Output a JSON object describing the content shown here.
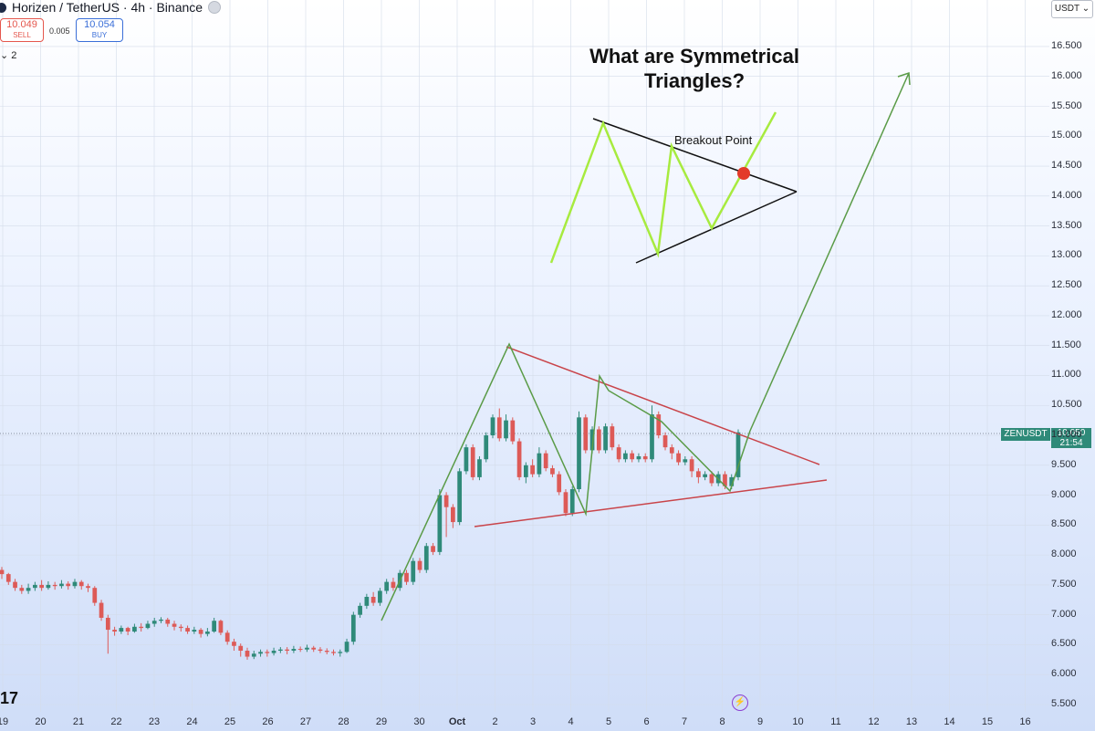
{
  "header": {
    "symbol": "Horizen / TetherUS · 4h · Binance"
  },
  "quote": {
    "sell_price": "10.049",
    "sell_label": "SELL",
    "spread": "0.005",
    "buy_price": "10.054",
    "buy_label": "BUY"
  },
  "indicators": {
    "label": "⌄ 2"
  },
  "currency": {
    "label": "USDT ⌄"
  },
  "ticker": {
    "name": "ZENUSDT",
    "price": "10.050",
    "countdown": "21:54"
  },
  "annotations": {
    "title_line1": "What are Symmetrical",
    "title_line2": "Triangles?",
    "breakout": "Breakout Point",
    "brand": "17"
  },
  "colors": {
    "up": "#2f8a79",
    "down": "#dd5a57",
    "trend_green": "#5a9b47",
    "trend_red": "#c9444a",
    "lime": "#a7eb3f",
    "dot": "#e33a2a"
  },
  "chart_data": {
    "type": "candlestick",
    "title": "What are Symmetrical Triangles?",
    "y_ticks": [
      "16.500",
      "16.000",
      "15.500",
      "15.000",
      "14.500",
      "14.000",
      "13.500",
      "13.000",
      "12.500",
      "12.000",
      "11.500",
      "11.000",
      "10.500",
      "10.000",
      "9.500",
      "9.000",
      "8.500",
      "8.000",
      "7.500",
      "7.000",
      "6.500",
      "6.000",
      "5.500"
    ],
    "x_ticks": [
      "19",
      "20",
      "21",
      "22",
      "23",
      "24",
      "25",
      "26",
      "27",
      "28",
      "29",
      "30",
      "Oct",
      "2",
      "3",
      "4",
      "5",
      "6",
      "7",
      "8",
      "9",
      "10",
      "11",
      "12",
      "13",
      "14",
      "15",
      "16"
    ],
    "ylim": [
      5.5,
      16.5
    ],
    "current_price": 10.05,
    "candles": [
      [
        7.75,
        7.68,
        7.8,
        7.6
      ],
      [
        7.68,
        7.55,
        7.7,
        7.5
      ],
      [
        7.55,
        7.45,
        7.6,
        7.4
      ],
      [
        7.45,
        7.4,
        7.5,
        7.35
      ],
      [
        7.4,
        7.45,
        7.52,
        7.35
      ],
      [
        7.45,
        7.5,
        7.55,
        7.4
      ],
      [
        7.5,
        7.45,
        7.58,
        7.4
      ],
      [
        7.45,
        7.5,
        7.56,
        7.42
      ],
      [
        7.5,
        7.48,
        7.55,
        7.42
      ],
      [
        7.48,
        7.52,
        7.58,
        7.44
      ],
      [
        7.52,
        7.48,
        7.56,
        7.42
      ],
      [
        7.48,
        7.55,
        7.6,
        7.44
      ],
      [
        7.55,
        7.48,
        7.58,
        7.42
      ],
      [
        7.48,
        7.45,
        7.52,
        7.38
      ],
      [
        7.45,
        7.2,
        7.48,
        7.15
      ],
      [
        7.2,
        6.95,
        7.25,
        6.9
      ],
      [
        6.95,
        6.75,
        7.0,
        6.35
      ],
      [
        6.75,
        6.72,
        6.8,
        6.65
      ],
      [
        6.72,
        6.78,
        6.82,
        6.68
      ],
      [
        6.78,
        6.72,
        6.8,
        6.66
      ],
      [
        6.72,
        6.8,
        6.85,
        6.7
      ],
      [
        6.8,
        6.78,
        6.86,
        6.72
      ],
      [
        6.78,
        6.85,
        6.9,
        6.76
      ],
      [
        6.85,
        6.9,
        6.95,
        6.8
      ],
      [
        6.9,
        6.92,
        6.96,
        6.86
      ],
      [
        6.92,
        6.85,
        6.95,
        6.8
      ],
      [
        6.85,
        6.8,
        6.9,
        6.74
      ],
      [
        6.8,
        6.78,
        6.84,
        6.72
      ],
      [
        6.78,
        6.72,
        6.82,
        6.68
      ],
      [
        6.72,
        6.75,
        6.8,
        6.68
      ],
      [
        6.75,
        6.68,
        6.78,
        6.62
      ],
      [
        6.68,
        6.72,
        6.78,
        6.64
      ],
      [
        6.72,
        6.9,
        6.95,
        6.7
      ],
      [
        6.9,
        6.7,
        6.92,
        6.66
      ],
      [
        6.7,
        6.55,
        6.74,
        6.5
      ],
      [
        6.55,
        6.48,
        6.6,
        6.4
      ],
      [
        6.48,
        6.4,
        6.52,
        6.3
      ],
      [
        6.4,
        6.3,
        6.45,
        6.25
      ],
      [
        6.3,
        6.35,
        6.4,
        6.26
      ],
      [
        6.35,
        6.38,
        6.42,
        6.3
      ],
      [
        6.38,
        6.36,
        6.42,
        6.3
      ],
      [
        6.36,
        6.4,
        6.45,
        6.32
      ],
      [
        6.4,
        6.42,
        6.46,
        6.36
      ],
      [
        6.42,
        6.4,
        6.46,
        6.34
      ],
      [
        6.4,
        6.43,
        6.48,
        6.36
      ],
      [
        6.43,
        6.42,
        6.47,
        6.38
      ],
      [
        6.42,
        6.45,
        6.5,
        6.38
      ],
      [
        6.45,
        6.42,
        6.48,
        6.38
      ],
      [
        6.42,
        6.4,
        6.46,
        6.36
      ],
      [
        6.4,
        6.38,
        6.44,
        6.34
      ],
      [
        6.38,
        6.36,
        6.42,
        6.32
      ],
      [
        6.36,
        6.38,
        6.42,
        6.3
      ],
      [
        6.38,
        6.55,
        6.6,
        6.36
      ],
      [
        6.55,
        7.0,
        7.05,
        6.5
      ],
      [
        7.0,
        7.15,
        7.2,
        6.95
      ],
      [
        7.15,
        7.3,
        7.35,
        7.1
      ],
      [
        7.3,
        7.2,
        7.38,
        7.15
      ],
      [
        7.2,
        7.4,
        7.45,
        7.15
      ],
      [
        7.4,
        7.55,
        7.6,
        7.35
      ],
      [
        7.55,
        7.45,
        7.62,
        7.4
      ],
      [
        7.45,
        7.7,
        7.75,
        7.4
      ],
      [
        7.7,
        7.55,
        7.75,
        7.5
      ],
      [
        7.55,
        7.9,
        7.95,
        7.5
      ],
      [
        7.9,
        7.75,
        7.95,
        7.7
      ],
      [
        7.75,
        8.15,
        8.2,
        7.7
      ],
      [
        8.15,
        8.05,
        8.2,
        8.0
      ],
      [
        8.05,
        9.0,
        9.1,
        8.0
      ],
      [
        9.0,
        8.8,
        9.05,
        8.3
      ],
      [
        8.8,
        8.55,
        8.85,
        8.45
      ],
      [
        8.55,
        9.4,
        9.45,
        8.5
      ],
      [
        9.4,
        9.8,
        9.85,
        9.35
      ],
      [
        9.8,
        9.3,
        9.85,
        9.25
      ],
      [
        9.3,
        9.6,
        9.65,
        9.25
      ],
      [
        9.6,
        10.0,
        10.05,
        9.55
      ],
      [
        10.0,
        10.3,
        10.35,
        9.95
      ],
      [
        10.3,
        9.95,
        10.45,
        9.9
      ],
      [
        9.95,
        10.25,
        10.35,
        9.9
      ],
      [
        10.25,
        9.9,
        10.3,
        9.85
      ],
      [
        9.9,
        9.3,
        9.95,
        9.25
      ],
      [
        9.3,
        9.5,
        9.55,
        9.2
      ],
      [
        9.5,
        9.35,
        9.6,
        9.3
      ],
      [
        9.35,
        9.7,
        9.8,
        9.3
      ],
      [
        9.7,
        9.45,
        9.75,
        9.4
      ],
      [
        9.45,
        9.35,
        9.5,
        9.3
      ],
      [
        9.35,
        9.05,
        9.4,
        9.0
      ],
      [
        9.05,
        8.7,
        9.1,
        8.65
      ],
      [
        8.7,
        9.1,
        9.15,
        8.65
      ],
      [
        9.1,
        10.3,
        10.4,
        9.05
      ],
      [
        10.3,
        9.75,
        10.35,
        9.7
      ],
      [
        9.75,
        10.1,
        10.15,
        9.7
      ],
      [
        10.1,
        9.75,
        10.15,
        9.7
      ],
      [
        9.75,
        10.15,
        10.2,
        9.7
      ],
      [
        10.15,
        9.8,
        10.2,
        9.75
      ],
      [
        9.8,
        9.6,
        9.85,
        9.55
      ],
      [
        9.6,
        9.7,
        9.75,
        9.55
      ],
      [
        9.7,
        9.6,
        9.75,
        9.55
      ],
      [
        9.6,
        9.65,
        9.7,
        9.55
      ],
      [
        9.65,
        9.6,
        9.7,
        9.55
      ],
      [
        9.6,
        10.35,
        10.5,
        9.55
      ],
      [
        10.35,
        10.0,
        10.4,
        9.95
      ],
      [
        10.0,
        9.8,
        10.05,
        9.75
      ],
      [
        9.8,
        9.7,
        9.85,
        9.6
      ],
      [
        9.7,
        9.55,
        9.75,
        9.5
      ],
      [
        9.55,
        9.6,
        9.65,
        9.5
      ],
      [
        9.6,
        9.4,
        9.65,
        9.3
      ],
      [
        9.4,
        9.3,
        9.45,
        9.2
      ],
      [
        9.3,
        9.35,
        9.4,
        9.25
      ],
      [
        9.35,
        9.2,
        9.4,
        9.15
      ],
      [
        9.2,
        9.35,
        9.4,
        9.15
      ],
      [
        9.35,
        9.15,
        9.4,
        9.1
      ],
      [
        9.15,
        9.3,
        9.35,
        9.1
      ],
      [
        9.3,
        10.05,
        10.1,
        9.25
      ]
    ]
  }
}
